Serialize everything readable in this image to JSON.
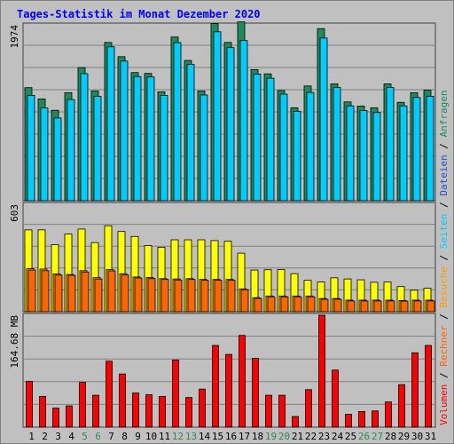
{
  "title": "Tages-Statistik im Monat Dezember 2020",
  "colors": {
    "background": "#c0c0c0",
    "plot": "#c0c0c0",
    "grid": "#808080",
    "title": "#0000ff",
    "anfragen": "#1a8c5c",
    "dateien": "#00ccff",
    "seiten": "#ffff00",
    "besuche": "#ff9900",
    "rechner": "#ff6600",
    "volumen": "#ff0000",
    "weekend_label": "#2e8b57",
    "weekday_label": "#000000"
  },
  "side_legend": {
    "volumen": "Volumen",
    "rechner": "Rechner",
    "besuche": "Besuche",
    "seiten": "Seiten",
    "dateien": "Dateien",
    "anfragen": "Anfragen",
    "sep": " / "
  },
  "chart_data": [
    {
      "type": "bar",
      "panel": "top",
      "y_tick_label": "1974",
      "ylim": [
        0,
        2100
      ],
      "categories": [
        "1",
        "2",
        "3",
        "4",
        "5",
        "6",
        "7",
        "8",
        "9",
        "10",
        "11",
        "12",
        "13",
        "14",
        "15",
        "16",
        "17",
        "18",
        "19",
        "20",
        "21",
        "22",
        "23",
        "24",
        "25",
        "26",
        "27",
        "28",
        "29",
        "30",
        "31"
      ],
      "weekend": [
        false,
        false,
        false,
        false,
        true,
        true,
        false,
        false,
        false,
        false,
        false,
        true,
        true,
        false,
        false,
        false,
        false,
        false,
        true,
        true,
        false,
        false,
        false,
        false,
        false,
        true,
        true,
        false,
        false,
        false,
        false
      ],
      "series": [
        {
          "name": "Anfragen",
          "values": [
            1350,
            1215,
            1080,
            1290,
            1590,
            1310,
            1890,
            1720,
            1530,
            1520,
            1300,
            1955,
            1675,
            1310,
            2115,
            1890,
            2135,
            1565,
            1515,
            1315,
            1110,
            1370,
            2055,
            1395,
            1180,
            1130,
            1110,
            1395,
            1175,
            1290,
            1320
          ]
        },
        {
          "name": "Dateien",
          "values": [
            1300,
            1150,
            1030,
            1250,
            1560,
            1290,
            1880,
            1710,
            1525,
            1520,
            1300,
            1930,
            1670,
            1305,
            2060,
            1870,
            1955,
            1555,
            1505,
            1315,
            1110,
            1335,
            1985,
            1395,
            1175,
            1120,
            1095,
            1395,
            1175,
            1275,
            1290
          ]
        }
      ]
    },
    {
      "type": "bar",
      "panel": "middle",
      "y_tick_label": "603",
      "ylim": [
        0,
        650
      ],
      "categories": [
        "1",
        "2",
        "3",
        "4",
        "5",
        "6",
        "7",
        "8",
        "9",
        "10",
        "11",
        "12",
        "13",
        "14",
        "15",
        "16",
        "17",
        "18",
        "19",
        "20",
        "21",
        "22",
        "23",
        "24",
        "25",
        "26",
        "27",
        "28",
        "29",
        "30",
        "31"
      ],
      "series": [
        {
          "name": "Seiten",
          "values": [
            495,
            495,
            406,
            470,
            500,
            418,
            520,
            485,
            455,
            400,
            390,
            435,
            435,
            435,
            430,
            426,
            354,
            252,
            254,
            255,
            230,
            190,
            180,
            205,
            198,
            193,
            178,
            180,
            152,
            130,
            142
          ]
        },
        {
          "name": "Besuche",
          "values": [
            260,
            258,
            229,
            225,
            248,
            206,
            255,
            230,
            210,
            207,
            200,
            198,
            200,
            195,
            195,
            195,
            138,
            85,
            95,
            95,
            95,
            95,
            80,
            80,
            70,
            70,
            70,
            70,
            68,
            70,
            70
          ]
        },
        {
          "name": "Rechner",
          "values": [
            252,
            248,
            221,
            220,
            240,
            198,
            247,
            222,
            204,
            200,
            195,
            192,
            195,
            190,
            190,
            190,
            133,
            80,
            90,
            90,
            90,
            90,
            75,
            75,
            65,
            65,
            65,
            65,
            64,
            65,
            65
          ]
        }
      ]
    },
    {
      "type": "bar",
      "panel": "bottom",
      "y_tick_label": "164.68 MB",
      "ylim": [
        0,
        200
      ],
      "series": [
        {
          "name": "Volumen",
          "values": [
            82,
            55,
            34,
            38,
            80,
            57,
            118,
            95,
            61,
            58,
            55,
            120,
            53,
            68,
            146,
            130,
            164,
            123,
            57,
            57,
            19,
            67,
            200,
            102,
            23,
            28,
            29,
            45,
            76,
            133,
            146
          ]
        }
      ]
    }
  ]
}
